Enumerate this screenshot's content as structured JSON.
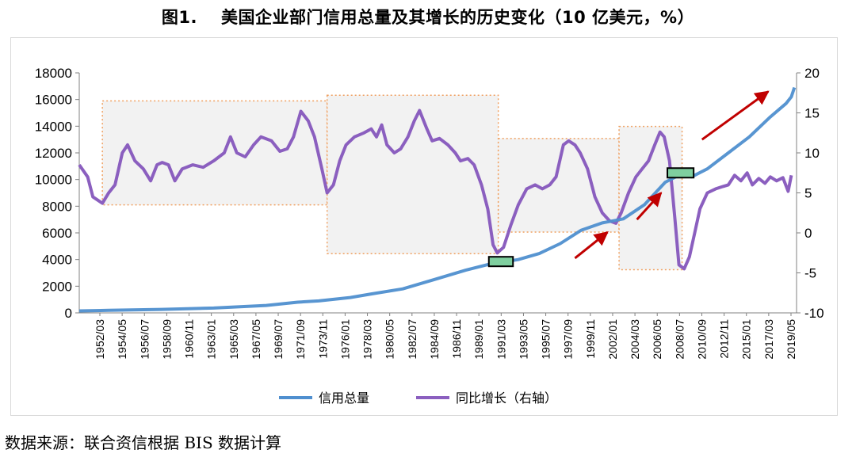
{
  "figure_label": "图1.",
  "title": "美国企业部门信用总量及其增长的历史变化（10 亿美元，%）",
  "source": "数据来源：联合资信根据 BIS 数据计算",
  "colors": {
    "credit": "#4f8fcf",
    "growth": "#8b5fbf",
    "box_border": "#f0a060",
    "box_fill": "#f2f2f2",
    "marker_fill": "#7fcf9f",
    "arrow": "#c00000"
  },
  "chart_data": {
    "type": "line",
    "left_axis": {
      "min": 0,
      "max": 18000,
      "ticks": [
        "0",
        "2000",
        "4000",
        "6000",
        "8000",
        "10000",
        "12000",
        "14000",
        "16000",
        "18000"
      ]
    },
    "right_axis": {
      "min": -10,
      "max": 20,
      "ticks": [
        "-10",
        "-5",
        "0",
        "5",
        "10",
        "15",
        "20"
      ]
    },
    "x_ticks": [
      "1952/03",
      "1954/05",
      "1956/07",
      "1958/09",
      "1960/11",
      "1963/01",
      "1965/03",
      "1967/05",
      "1969/07",
      "1971/09",
      "1973/11",
      "1976/01",
      "1978/03",
      "1980/05",
      "1982/07",
      "1984/09",
      "1986/11",
      "1989/01",
      "1991/03",
      "1993/05",
      "1995/07",
      "1997/09",
      "1999/11",
      "2002/01",
      "2004/03",
      "2006/05",
      "2008/07",
      "2010/09",
      "2012/11",
      "2015/01",
      "2017/03",
      "2019/05"
    ],
    "series": [
      {
        "name": "信用总量",
        "axis": "left",
        "points": [
          [
            1952.2,
            150
          ],
          [
            1955,
            190
          ],
          [
            1960,
            260
          ],
          [
            1965,
            360
          ],
          [
            1970,
            560
          ],
          [
            1973,
            800
          ],
          [
            1975,
            900
          ],
          [
            1978,
            1150
          ],
          [
            1980,
            1420
          ],
          [
            1983,
            1800
          ],
          [
            1986,
            2500
          ],
          [
            1989,
            3200
          ],
          [
            1991.5,
            3700
          ],
          [
            1992.5,
            3800
          ],
          [
            1994,
            4000
          ],
          [
            1996,
            4450
          ],
          [
            1998,
            5200
          ],
          [
            2000,
            6200
          ],
          [
            2002,
            6750
          ],
          [
            2004,
            7050
          ],
          [
            2006,
            8100
          ],
          [
            2008,
            9800
          ],
          [
            2009.5,
            10400
          ],
          [
            2010.5,
            10200
          ],
          [
            2012,
            10800
          ],
          [
            2014,
            12000
          ],
          [
            2016,
            13200
          ],
          [
            2018,
            14700
          ],
          [
            2019.5,
            15700
          ],
          [
            2020,
            16200
          ],
          [
            2020.3,
            16900
          ]
        ]
      },
      {
        "name": "同比增长（右轴）",
        "axis": "right",
        "points": [
          [
            1952.2,
            8.5
          ],
          [
            1953,
            7
          ],
          [
            1953.5,
            4.5
          ],
          [
            1954.4,
            3.7
          ],
          [
            1955,
            5
          ],
          [
            1955.6,
            6
          ],
          [
            1956.3,
            10
          ],
          [
            1956.8,
            11
          ],
          [
            1957.5,
            9
          ],
          [
            1958.3,
            8
          ],
          [
            1959,
            6.5
          ],
          [
            1959.6,
            8.5
          ],
          [
            1960.1,
            8.8
          ],
          [
            1960.7,
            8.5
          ],
          [
            1961.3,
            6.5
          ],
          [
            1962,
            8
          ],
          [
            1963,
            8.5
          ],
          [
            1964,
            8.2
          ],
          [
            1965,
            9
          ],
          [
            1966,
            10
          ],
          [
            1966.6,
            12
          ],
          [
            1967.2,
            10
          ],
          [
            1968,
            9.5
          ],
          [
            1968.8,
            11
          ],
          [
            1969.5,
            12
          ],
          [
            1970.5,
            11.5
          ],
          [
            1971.3,
            10.2
          ],
          [
            1972,
            10.5
          ],
          [
            1972.6,
            12
          ],
          [
            1973.3,
            15.2
          ],
          [
            1974,
            14
          ],
          [
            1974.6,
            12
          ],
          [
            1975.3,
            8
          ],
          [
            1975.8,
            5
          ],
          [
            1976.4,
            6
          ],
          [
            1977,
            9
          ],
          [
            1977.6,
            11
          ],
          [
            1978.4,
            12
          ],
          [
            1979.3,
            12.5
          ],
          [
            1980,
            13
          ],
          [
            1980.5,
            12
          ],
          [
            1981,
            13.5
          ],
          [
            1981.5,
            11
          ],
          [
            1982.2,
            10
          ],
          [
            1982.8,
            10.5
          ],
          [
            1983.5,
            12
          ],
          [
            1984.1,
            14
          ],
          [
            1984.6,
            15.3
          ],
          [
            1985.3,
            13
          ],
          [
            1985.8,
            11.5
          ],
          [
            1986.5,
            11.8
          ],
          [
            1987.3,
            11
          ],
          [
            1988,
            10
          ],
          [
            1988.5,
            9
          ],
          [
            1989.2,
            9.3
          ],
          [
            1989.8,
            8.5
          ],
          [
            1990.5,
            6
          ],
          [
            1991.1,
            3
          ],
          [
            1991.6,
            -1.5
          ],
          [
            1992,
            -2.5
          ],
          [
            1992.6,
            -1.8
          ],
          [
            1993.3,
            1
          ],
          [
            1994,
            3.5
          ],
          [
            1994.8,
            5.5
          ],
          [
            1995.6,
            6
          ],
          [
            1996.3,
            5.5
          ],
          [
            1997,
            6
          ],
          [
            1997.6,
            7
          ],
          [
            1998.3,
            11
          ],
          [
            1998.8,
            11.5
          ],
          [
            1999.4,
            11
          ],
          [
            1999.9,
            10
          ],
          [
            2000.6,
            8
          ],
          [
            2001.3,
            4.5
          ],
          [
            2002,
            2.5
          ],
          [
            2002.7,
            1.5
          ],
          [
            2003.3,
            1.2
          ],
          [
            2003.8,
            2.5
          ],
          [
            2004.5,
            5
          ],
          [
            2005.2,
            7
          ],
          [
            2005.8,
            8
          ],
          [
            2006.4,
            9
          ],
          [
            2007,
            11
          ],
          [
            2007.5,
            12.6
          ],
          [
            2007.9,
            12
          ],
          [
            2008.4,
            9
          ],
          [
            2008.9,
            2
          ],
          [
            2009.3,
            -4
          ],
          [
            2009.8,
            -4.5
          ],
          [
            2010.3,
            -3
          ],
          [
            2010.8,
            0
          ],
          [
            2011.3,
            3
          ],
          [
            2012,
            5
          ],
          [
            2012.8,
            5.5
          ],
          [
            2013.5,
            5.8
          ],
          [
            2014,
            6
          ],
          [
            2014.6,
            7.2
          ],
          [
            2015.2,
            6.5
          ],
          [
            2015.8,
            7.5
          ],
          [
            2016.3,
            6
          ],
          [
            2016.9,
            6.8
          ],
          [
            2017.5,
            6.2
          ],
          [
            2018,
            7
          ],
          [
            2018.6,
            6.5
          ],
          [
            2019.2,
            6.9
          ],
          [
            2019.7,
            5.2
          ],
          [
            2020,
            7.2
          ]
        ]
      }
    ],
    "legend": {
      "position": "bottom",
      "entries": [
        "信用总量",
        "同比增长（右轴）"
      ]
    },
    "annotations": {
      "boxes": [
        {
          "x0": 1954.4,
          "x1": 1975.8,
          "y0": 3.5,
          "y1": 16.5
        },
        {
          "x0": 1975.8,
          "x1": 1992.1,
          "y0": -2.6,
          "y1": 17.2
        },
        {
          "x0": 1992.1,
          "x1": 2003.6,
          "y0": 0.1,
          "y1": 11.8
        },
        {
          "x0": 2003.6,
          "x1": 2009.6,
          "y0": -4.6,
          "y1": 13.3
        }
      ],
      "markers": [
        {
          "x0": 1991.2,
          "x1": 1993.5,
          "y": 3850
        },
        {
          "x0": 2008.2,
          "x1": 2010.7,
          "y": 10500
        }
      ],
      "arrows": [
        {
          "x0": 1999.4,
          "y0": 4100,
          "x1": 2002.5,
          "y1": 6050
        },
        {
          "x0": 2005.3,
          "y0": 7000,
          "x1": 2007.6,
          "y1": 9000
        },
        {
          "x0": 2011.5,
          "y0": 13000,
          "x1": 2017.8,
          "y1": 16600
        }
      ]
    }
  }
}
